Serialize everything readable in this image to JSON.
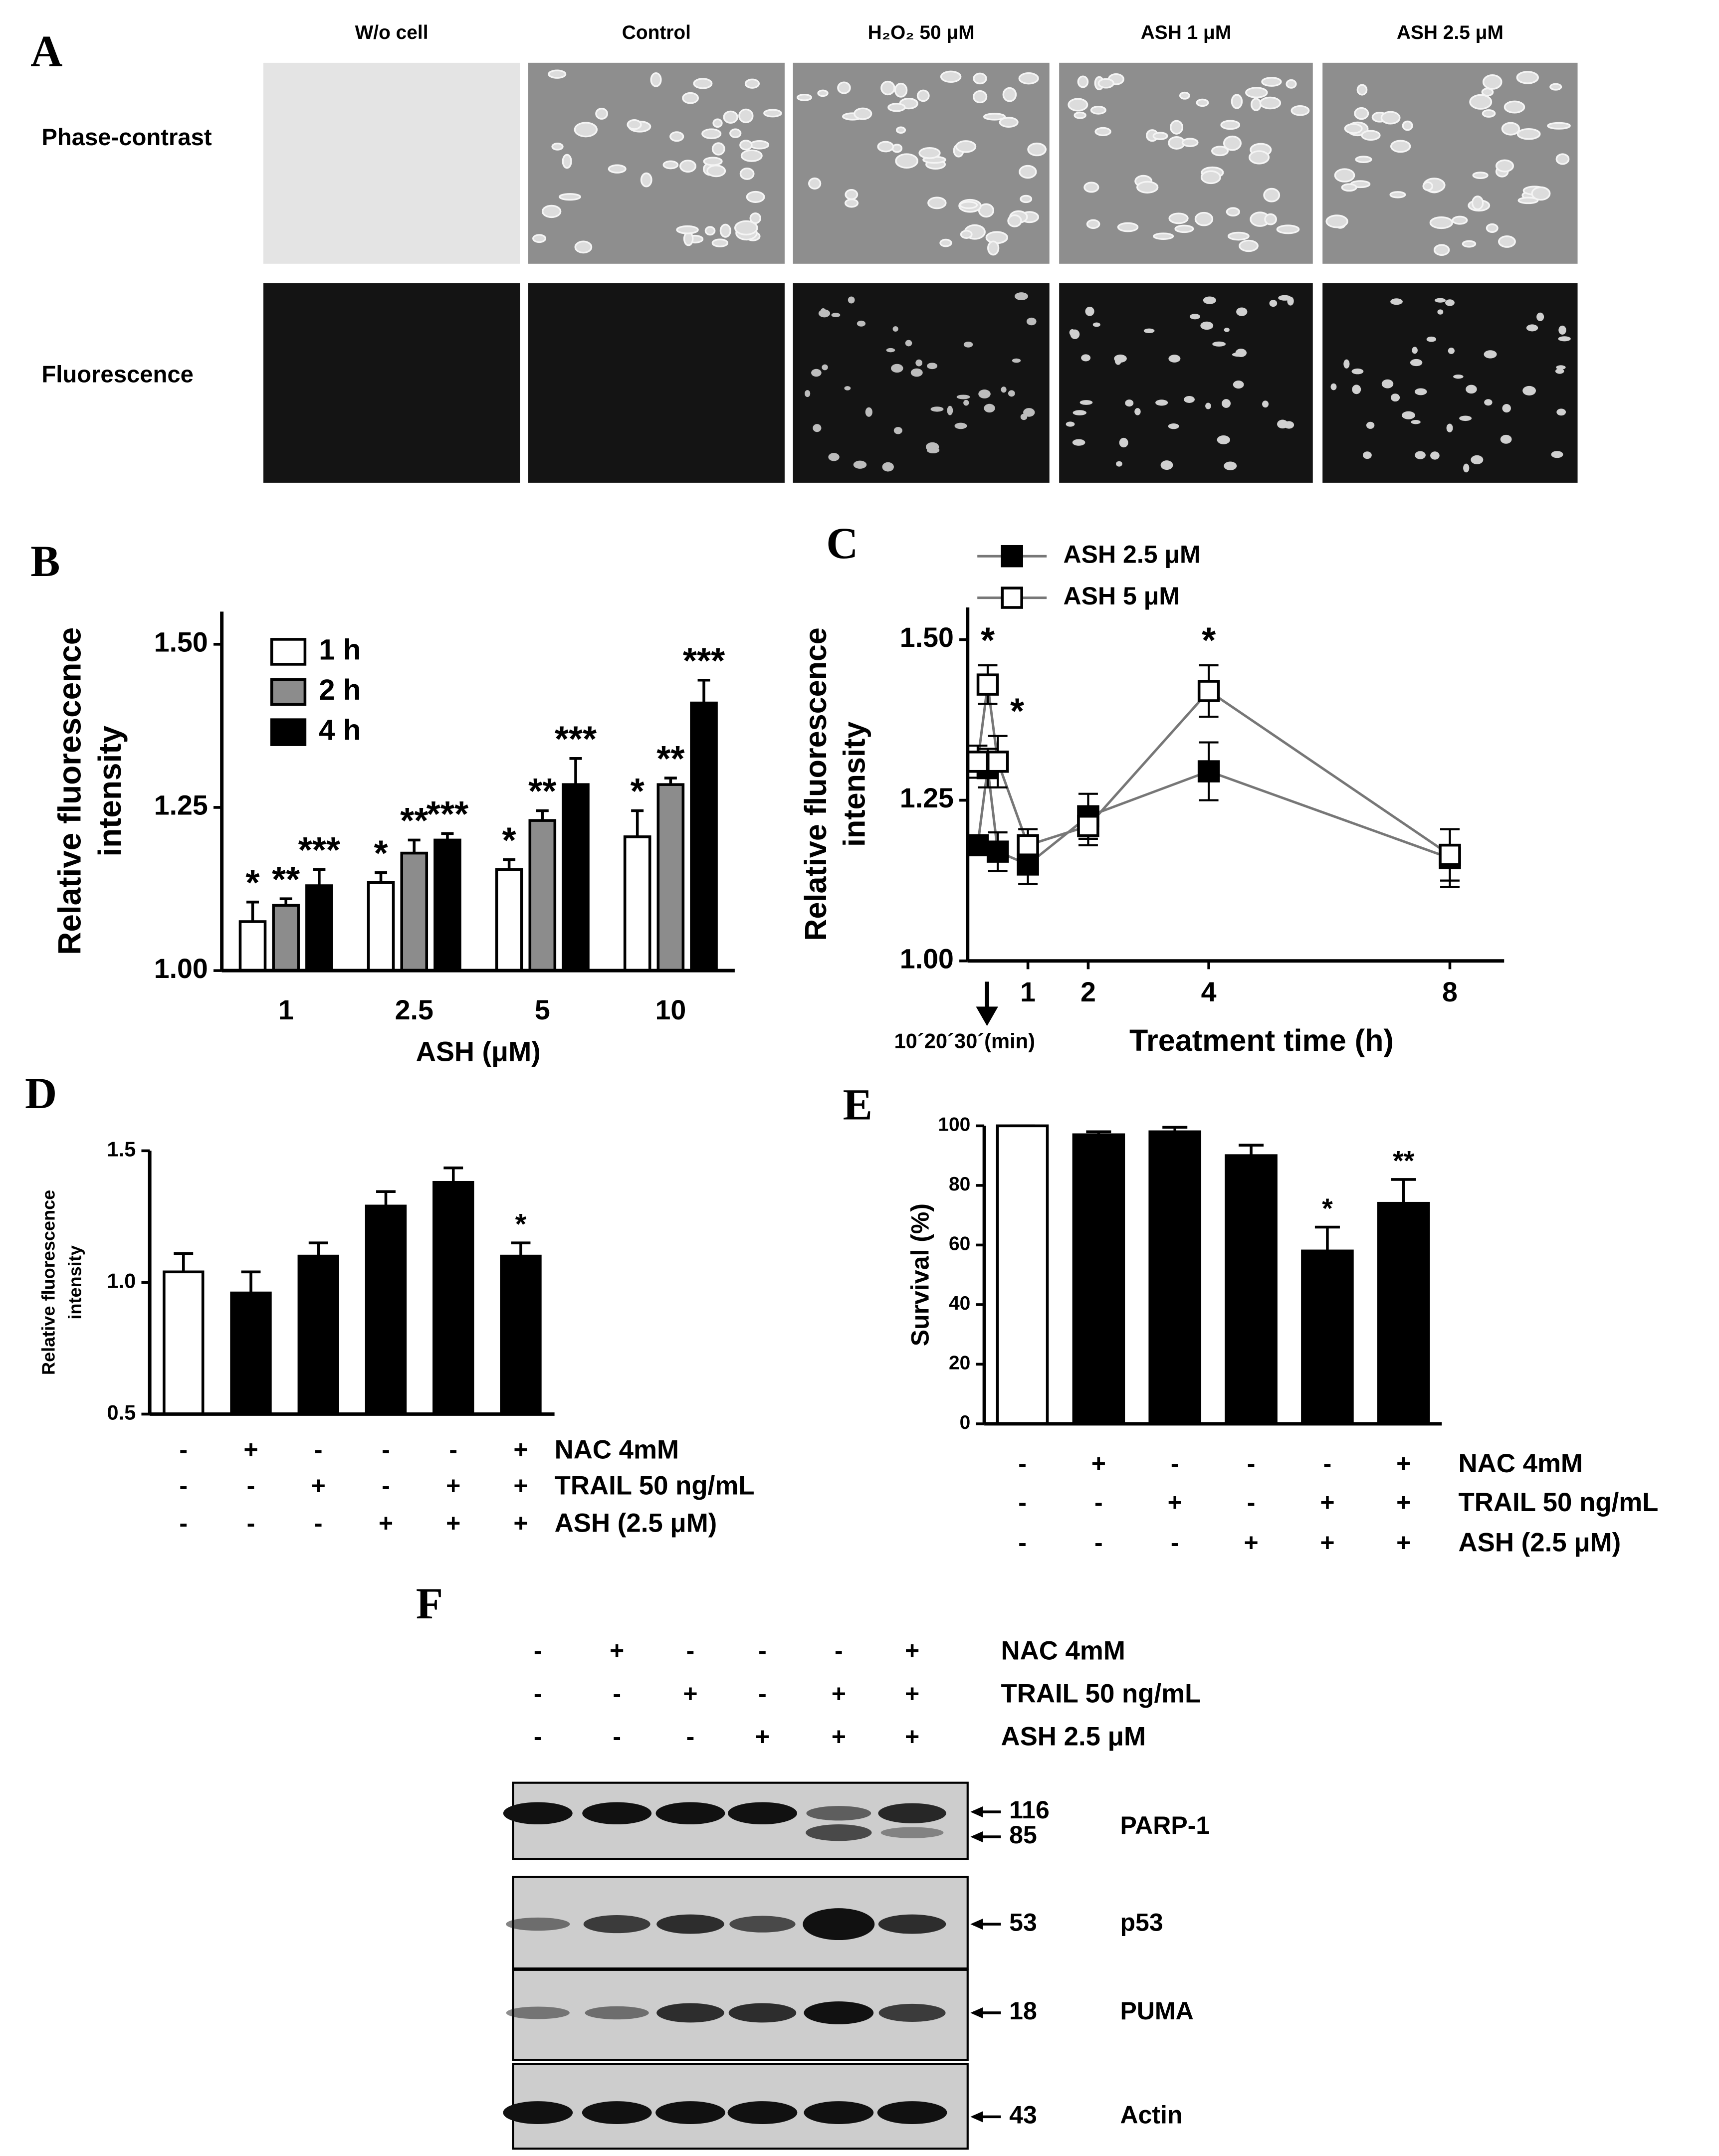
{
  "panel_a": {
    "label": "A",
    "columns": [
      "W/o cell",
      "Control",
      "H₂O₂ 50 μM",
      "ASH 1 μM",
      "ASH 2.5 μM"
    ],
    "rows": [
      "Phase-contrast",
      "Fluorescence"
    ]
  },
  "chart_data": [
    {
      "panel": "B",
      "type": "bar",
      "categories": [
        "1",
        "2.5",
        "5",
        "10"
      ],
      "xlabel": "ASH  (μM)",
      "ylabel": [
        "Relative fluorescence",
        "intensity"
      ],
      "ylim": [
        1.0,
        1.55
      ],
      "yticks": [
        {
          "value": 1,
          "label": "1.00"
        },
        1.25,
        {
          "value": 1.5,
          "label": "1.50"
        }
      ],
      "legend": "upper left",
      "series": [
        {
          "name": "1 h",
          "color": "#ffffff",
          "values": [
            1.075,
            1.135,
            1.155,
            1.205
          ],
          "errors": [
            0.03,
            0.015,
            0.015,
            0.04
          ],
          "stars": [
            "*",
            "*",
            "*",
            "*"
          ]
        },
        {
          "name": "2 h",
          "color": "#8c8c8c",
          "values": [
            1.1,
            1.18,
            1.23,
            1.285
          ],
          "errors": [
            0.01,
            0.02,
            0.015,
            0.01
          ],
          "stars": [
            "**",
            "**",
            "**",
            "**"
          ]
        },
        {
          "name": "4 h",
          "color": "#000000",
          "values": [
            1.13,
            1.2,
            1.285,
            1.41
          ],
          "errors": [
            0.025,
            0.01,
            0.04,
            0.035
          ],
          "stars": [
            "***",
            "***",
            "***",
            "***"
          ]
        }
      ]
    },
    {
      "panel": "C",
      "type": "line",
      "x": [
        0.167,
        0.333,
        0.5,
        1,
        2,
        4,
        8
      ],
      "xlim": [
        0,
        8.9
      ],
      "xticks": [
        1,
        2,
        4,
        8
      ],
      "xlabel": "Treatment time (h)",
      "x_annotation": "10´20´30´(min)",
      "ylabel": [
        "Relative fluorescence",
        "intensity"
      ],
      "ylim": [
        1.0,
        1.55
      ],
      "yticks": [
        {
          "value": 1,
          "label": "1.00"
        },
        1.25,
        {
          "value": 1.5,
          "label": "1.50"
        }
      ],
      "line_color": "#777777",
      "series": [
        {
          "name": "ASH 2.5 μM",
          "color": "#000000",
          "marker_fill": "#000000",
          "values": [
            1.18,
            1.3,
            1.17,
            1.15,
            1.225,
            1.295,
            1.16
          ],
          "errors": [
            0.015,
            0.03,
            0.03,
            0.03,
            0.035,
            0.045,
            0.045
          ]
        },
        {
          "name": "ASH 5 μM",
          "color": "#000000",
          "marker_fill": "#ffffff",
          "values": [
            1.31,
            1.43,
            1.31,
            1.18,
            1.21,
            1.42,
            1.165
          ],
          "errors": [
            0.025,
            0.03,
            0.04,
            0.025,
            0.03,
            0.04,
            0.04
          ],
          "stars": [
            null,
            "*",
            "*",
            null,
            null,
            "*",
            null
          ]
        }
      ]
    },
    {
      "panel": "D",
      "type": "bar",
      "ylabel": [
        "Relative fluorescence",
        "intensity"
      ],
      "ylim": [
        0.5,
        1.5
      ],
      "yticks": [
        0.5,
        {
          "value": 1,
          "label": "1.0"
        },
        1.5
      ],
      "series": [
        {
          "colors": [
            "#ffffff",
            "#000000",
            "#000000",
            "#000000",
            "#000000",
            "#000000"
          ],
          "values": [
            1.04,
            0.96,
            1.1,
            1.29,
            1.38,
            1.1
          ],
          "errors": [
            0.07,
            0.08,
            0.05,
            0.055,
            0.055,
            0.05
          ],
          "stars": [
            null,
            null,
            null,
            null,
            null,
            "*"
          ]
        }
      ],
      "conditions": [
        {
          "name": "NAC 4mM",
          "signs": [
            "-",
            "+",
            "-",
            "-",
            "-",
            "+"
          ]
        },
        {
          "name": "TRAIL 50 ng/mL",
          "signs": [
            "-",
            "-",
            "+",
            "-",
            "+",
            "+"
          ]
        },
        {
          "name": "ASH (2.5 μM)",
          "signs": [
            "-",
            "-",
            "-",
            "+",
            "+",
            "+"
          ]
        }
      ]
    },
    {
      "panel": "E",
      "type": "bar",
      "ylabel": [
        "Survival  (%)"
      ],
      "ylim": [
        0,
        100
      ],
      "yticks": [
        0,
        20,
        40,
        60,
        80,
        100
      ],
      "series": [
        {
          "colors": [
            "#ffffff",
            "#000000",
            "#000000",
            "#000000",
            "#000000",
            "#000000"
          ],
          "values": [
            100,
            97,
            98,
            90,
            58,
            74
          ],
          "errors": [
            0,
            1,
            1.5,
            3.5,
            8,
            8
          ],
          "stars": [
            null,
            null,
            null,
            null,
            "*",
            "**"
          ]
        }
      ],
      "conditions": [
        {
          "name": "NAC 4mM",
          "signs": [
            "-",
            "+",
            "-",
            "-",
            "-",
            "+"
          ]
        },
        {
          "name": "TRAIL 50 ng/mL",
          "signs": [
            "-",
            "-",
            "+",
            "-",
            "+",
            "+"
          ]
        },
        {
          "name": "ASH (2.5 μM)",
          "signs": [
            "-",
            "-",
            "-",
            "+",
            "+",
            "+"
          ]
        }
      ]
    }
  ],
  "panel_f": {
    "label": "F",
    "conditions": [
      {
        "name": "NAC 4mM",
        "signs": [
          "-",
          "+",
          "-",
          "-",
          "-",
          "+"
        ]
      },
      {
        "name": "TRAIL 50 ng/mL",
        "signs": [
          "-",
          "-",
          "+",
          "-",
          "+",
          "+"
        ]
      },
      {
        "name": "ASH 2.5 μM",
        "signs": [
          "-",
          "-",
          "-",
          "+",
          "+",
          "+"
        ]
      }
    ],
    "blots": [
      {
        "name": "PARP-1",
        "markers": [
          116,
          85
        ]
      },
      {
        "name": "p53",
        "markers": [
          53
        ]
      },
      {
        "name": "PUMA",
        "markers": [
          18
        ]
      },
      {
        "name": "Actin",
        "markers": [
          43
        ]
      }
    ]
  }
}
